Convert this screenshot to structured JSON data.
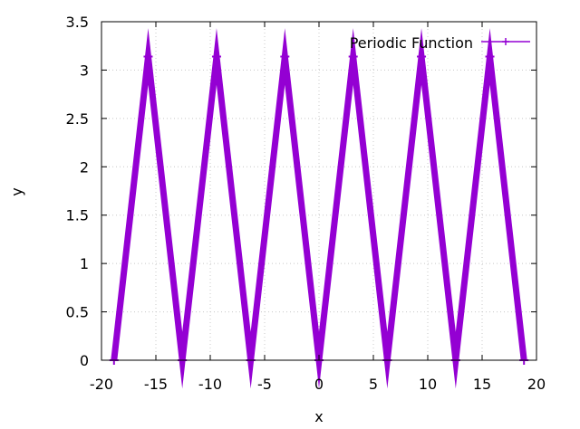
{
  "chart_data": {
    "type": "line",
    "title": "",
    "xlabel": "x",
    "ylabel": "y",
    "xlim": [
      -20,
      20
    ],
    "ylim": [
      0,
      3.5
    ],
    "xticks": [
      -20,
      -15,
      -10,
      -5,
      0,
      5,
      10,
      15,
      20
    ],
    "yticks": [
      0,
      0.5,
      1,
      1.5,
      2,
      2.5,
      3,
      3.5
    ],
    "xtick_labels": [
      "-20",
      "-15",
      "-10",
      "-5",
      "0",
      "5",
      "10",
      "15",
      "20"
    ],
    "ytick_labels": [
      "0",
      "0.5",
      "1",
      "1.5",
      "2",
      "2.5",
      "3",
      "3.5"
    ],
    "grid": true,
    "legend_position": "top-right",
    "series": [
      {
        "name": "Periodic Function",
        "color": "#9400d3",
        "marker": "plus",
        "x": [
          -18.85,
          -15.71,
          -12.57,
          -9.42,
          -6.28,
          -3.14,
          0,
          3.14,
          6.28,
          9.42,
          12.57,
          15.71,
          18.85
        ],
        "y": [
          0,
          3.14,
          0,
          3.14,
          0,
          3.14,
          0,
          3.14,
          0,
          3.14,
          0,
          3.14,
          0
        ]
      }
    ]
  }
}
